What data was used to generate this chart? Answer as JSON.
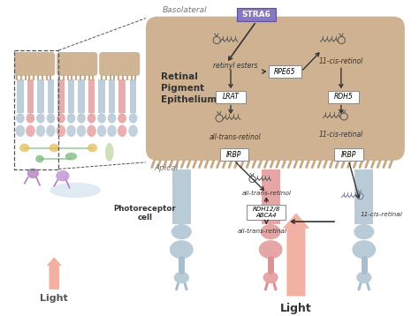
{
  "background_color": "#ffffff",
  "rpe_box_color": "#c8a882",
  "stra6_text": "STRA6",
  "basolateral_text": "Basolateral",
  "apical_text": "Apical",
  "rpe_label": "Retinal\nPigment\nEpithelium",
  "photoreceptor_label": "Photoreceptor\ncell",
  "light_text": "Light",
  "molecules": {
    "retinyl_esters": "retinyl esters",
    "all_trans_retinol_rpe": "all-trans-retinol",
    "lrat": "LRAT",
    "rpe65": "RPE65",
    "rdh5": "RDH5",
    "cis_retinol": "11-cis-retinol",
    "cis_retinal_rpe": "11-cis-retinal",
    "irbp1": "IRBP",
    "irbp2": "IRBP",
    "all_trans_retinol_pr": "all-trans-retinol",
    "rdh12_abca4": "RDH12/8\nABCA4",
    "all_trans_retinal": "all-trans-retinal",
    "cis_retinal_pr": "11-cis-retinal"
  },
  "colors": {
    "blue_cell": "#a8bece",
    "pink_cell": "#e09090",
    "light_arrow": "#f0a898",
    "tan": "#c8a882",
    "purple": "#8878c0",
    "green": "#78b878",
    "yellow": "#e8c060",
    "violet": "#b080c0",
    "light_blue_neuron": "#a0c0e0"
  }
}
